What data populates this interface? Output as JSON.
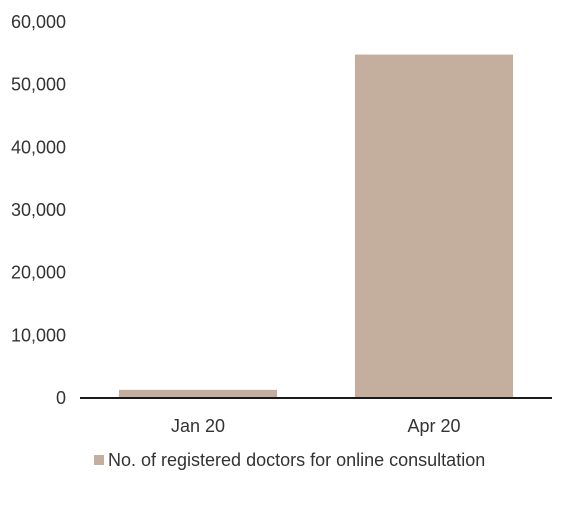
{
  "chart_data": {
    "type": "bar",
    "categories": [
      "Jan 20",
      "Apr 20"
    ],
    "series": [
      {
        "name": "No. of registered doctors for online consultation",
        "values": [
          1300,
          54800
        ],
        "color": "#c4ae9d"
      }
    ],
    "ylim": [
      0,
      60000
    ],
    "yticks": [
      0,
      10000,
      20000,
      30000,
      40000,
      50000,
      60000
    ],
    "ytick_labels": [
      "0",
      "10,000",
      "20,000",
      "30,000",
      "40,000",
      "50,000",
      "60,000"
    ],
    "grid": false,
    "legend_position": "bottom-left",
    "axis_color": "#1a1a1a"
  }
}
